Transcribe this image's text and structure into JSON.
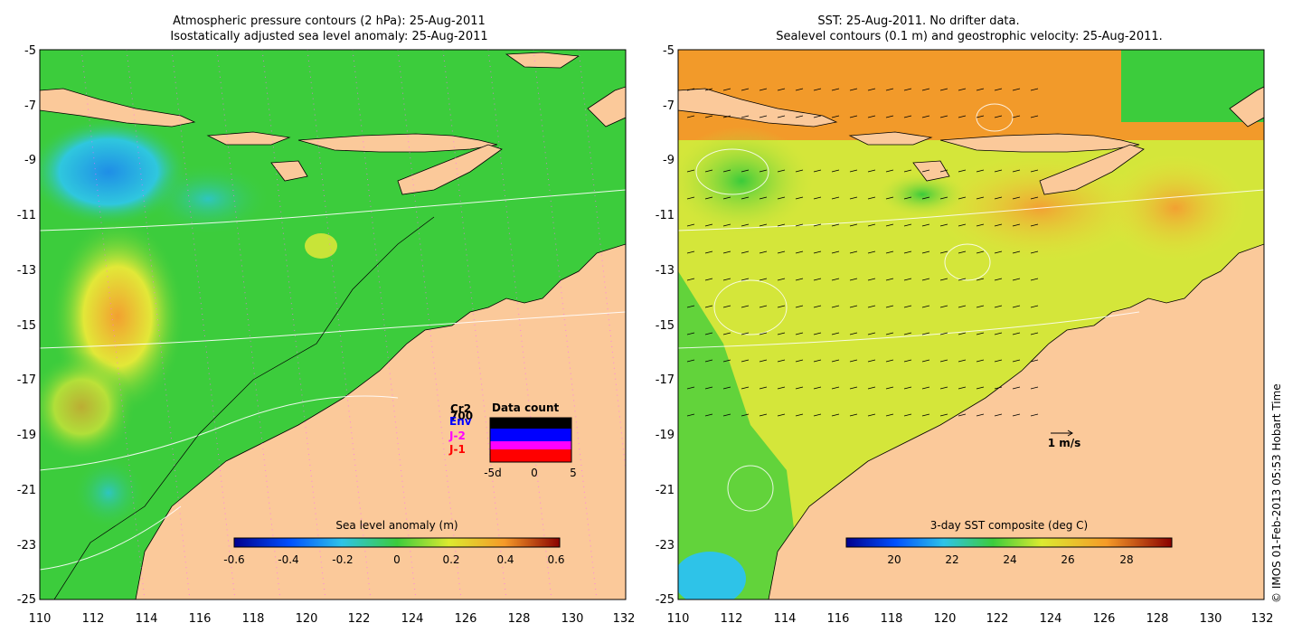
{
  "left_map": {
    "title_line1": "Atmospheric pressure contours (2 hPa): 25-Aug-2011",
    "title_line2": "Isostatically adjusted sea level anomaly: 25-Aug-2011",
    "colorbar": {
      "label": "Sea level anomaly (m)",
      "ticks": [
        "-0.6",
        "-0.4",
        "-0.2",
        "0",
        "0.2",
        "0.4",
        "0.6"
      ]
    },
    "data_count": {
      "title": "Data count",
      "series": [
        {
          "name": "Cr2",
          "color": "#000000"
        },
        {
          "name": "700",
          "color": "#000000"
        },
        {
          "name": "Env",
          "color": "#0000ff"
        },
        {
          "name": "J-2",
          "color": "#ff00ff"
        },
        {
          "name": "J-1",
          "color": "#ff0000"
        }
      ],
      "axis_labels": [
        "-5d",
        "0",
        "5"
      ]
    }
  },
  "right_map": {
    "title_line1": "SST: 25-Aug-2011. No drifter data.",
    "title_line2": "Sealevel contours (0.1 m) and geostrophic velocity: 25-Aug-2011.",
    "colorbar": {
      "label": "3-day SST composite (deg C)",
      "ticks": [
        "20",
        "22",
        "24",
        "26",
        "28"
      ]
    },
    "scale_label": "1 m/s"
  },
  "axes": {
    "lat_ticks": [
      "-5",
      "-7",
      "-9",
      "-11",
      "-13",
      "-15",
      "-17",
      "-19",
      "-21",
      "-23",
      "-25"
    ],
    "lon_ticks": [
      "110",
      "112",
      "114",
      "116",
      "118",
      "120",
      "122",
      "124",
      "126",
      "128",
      "130",
      "132"
    ]
  },
  "credit": "© IMOS 01-Feb-2013 05:53 Hobart Time",
  "colors": {
    "land": "#fbc99a",
    "ocean_green": "#3fcc3a",
    "ocean_yellow": "#c8e638",
    "sst_orange": "#f29a2a"
  }
}
